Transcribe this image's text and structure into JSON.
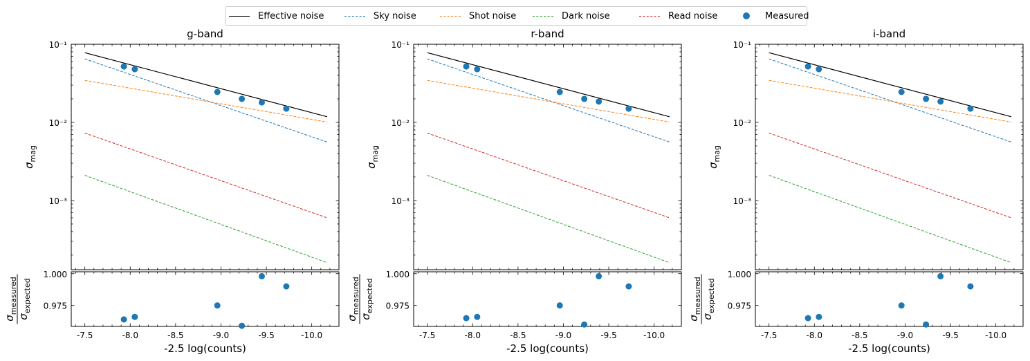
{
  "legend": {
    "items": [
      {
        "label": "Effective noise",
        "color": "#000000",
        "style": "solid"
      },
      {
        "label": "Sky noise",
        "color": "#1f77b4",
        "style": "dashed"
      },
      {
        "label": "Shot noise",
        "color": "#ff7f0e",
        "style": "dashed"
      },
      {
        "label": "Dark noise",
        "color": "#2ca02c",
        "style": "dashed"
      },
      {
        "label": "Read noise",
        "color": "#d62728",
        "style": "dashed"
      },
      {
        "label": "Measured",
        "color": "#1f77b4",
        "style": "marker"
      }
    ]
  },
  "chart_data": [
    {
      "type": "line",
      "title": "g-band",
      "xlabel": "-2.5 log(counts)",
      "ylabel": "σ_mag",
      "yscale": "log",
      "xlim": [
        -7.35,
        -10.3
      ],
      "ylim": [
        0.00013,
        0.1
      ],
      "xticks": [
        "-7.5",
        "-8.0",
        "-8.5",
        "-9.0",
        "-9.5",
        "-10.0"
      ],
      "yticks": [
        "10⁻¹",
        "10⁻²",
        "10⁻³"
      ],
      "series": [
        {
          "name": "Effective noise",
          "x": [
            -7.5,
            -10.17
          ],
          "y": [
            0.078,
            0.0118
          ],
          "color": "#000000",
          "style": "solid"
        },
        {
          "name": "Sky noise",
          "x": [
            -7.5,
            -10.17
          ],
          "y": [
            0.065,
            0.0056
          ],
          "color": "#1f77b4",
          "style": "dashed"
        },
        {
          "name": "Shot noise",
          "x": [
            -7.5,
            -10.17
          ],
          "y": [
            0.0345,
            0.0101
          ],
          "color": "#ff7f0e",
          "style": "dashed"
        },
        {
          "name": "Dark noise",
          "x": [
            -7.5,
            -10.17
          ],
          "y": [
            0.0021,
            0.00016
          ],
          "color": "#2ca02c",
          "style": "dashed"
        },
        {
          "name": "Read noise",
          "x": [
            -7.5,
            -10.17
          ],
          "y": [
            0.0073,
            0.0006
          ],
          "color": "#d62728",
          "style": "dashed"
        }
      ],
      "measured": {
        "name": "Measured",
        "x": [
          -7.93,
          -8.05,
          -8.96,
          -9.23,
          -9.45,
          -9.72
        ],
        "y": [
          0.052,
          0.048,
          0.0245,
          0.02,
          0.018,
          0.015
        ],
        "color": "#1f77b4"
      },
      "ratio": {
        "ylabel_num": "σ_measured",
        "ylabel_den": "σ_expected",
        "ylim": [
          0.9585,
          1.0015
        ],
        "yticks": [
          "1.000",
          "0.975"
        ],
        "x": [
          -7.93,
          -8.05,
          -8.96,
          -9.23,
          -9.45,
          -9.72
        ],
        "y": [
          0.964,
          0.966,
          0.975,
          0.959,
          0.998,
          0.99
        ]
      }
    },
    {
      "type": "line",
      "title": "r-band",
      "xlabel": "-2.5 log(counts)",
      "ylabel": "σ_mag",
      "yscale": "log",
      "xlim": [
        -7.35,
        -10.3
      ],
      "ylim": [
        0.00013,
        0.1
      ],
      "xticks": [
        "-7.5",
        "-8.0",
        "-8.5",
        "-9.0",
        "-9.5",
        "-10.0"
      ],
      "yticks": [
        "10⁻¹",
        "10⁻²",
        "10⁻³"
      ],
      "series": [
        {
          "name": "Effective noise",
          "x": [
            -7.5,
            -10.17
          ],
          "y": [
            0.078,
            0.0118
          ],
          "color": "#000000",
          "style": "solid"
        },
        {
          "name": "Sky noise",
          "x": [
            -7.5,
            -10.17
          ],
          "y": [
            0.065,
            0.0056
          ],
          "color": "#1f77b4",
          "style": "dashed"
        },
        {
          "name": "Shot noise",
          "x": [
            -7.5,
            -10.17
          ],
          "y": [
            0.0345,
            0.0101
          ],
          "color": "#ff7f0e",
          "style": "dashed"
        },
        {
          "name": "Dark noise",
          "x": [
            -7.5,
            -10.17
          ],
          "y": [
            0.0021,
            0.00016
          ],
          "color": "#2ca02c",
          "style": "dashed"
        },
        {
          "name": "Read noise",
          "x": [
            -7.5,
            -10.17
          ],
          "y": [
            0.0073,
            0.0006
          ],
          "color": "#d62728",
          "style": "dashed"
        }
      ],
      "measured": {
        "name": "Measured",
        "x": [
          -7.93,
          -8.05,
          -8.96,
          -9.23,
          -9.39,
          -9.72
        ],
        "y": [
          0.052,
          0.048,
          0.0245,
          0.02,
          0.0185,
          0.015
        ],
        "color": "#1f77b4"
      },
      "ratio": {
        "ylabel_num": "σ_measured",
        "ylabel_den": "σ_expected",
        "ylim": [
          0.9585,
          1.0015
        ],
        "yticks": [
          "1.000",
          "0.975"
        ],
        "x": [
          -7.93,
          -8.05,
          -8.96,
          -9.23,
          -9.39,
          -9.72
        ],
        "y": [
          0.965,
          0.966,
          0.975,
          0.96,
          0.998,
          0.99
        ]
      }
    },
    {
      "type": "line",
      "title": "i-band",
      "xlabel": "-2.5 log(counts)",
      "ylabel": "σ_mag",
      "yscale": "log",
      "xlim": [
        -7.35,
        -10.3
      ],
      "ylim": [
        0.00013,
        0.1
      ],
      "xticks": [
        "-7.5",
        "-8.0",
        "-8.5",
        "-9.0",
        "-9.5",
        "-10.0"
      ],
      "yticks": [
        "10⁻¹",
        "10⁻²",
        "10⁻³"
      ],
      "series": [
        {
          "name": "Effective noise",
          "x": [
            -7.5,
            -10.17
          ],
          "y": [
            0.078,
            0.0118
          ],
          "color": "#000000",
          "style": "solid"
        },
        {
          "name": "Sky noise",
          "x": [
            -7.5,
            -10.17
          ],
          "y": [
            0.065,
            0.0056
          ],
          "color": "#1f77b4",
          "style": "dashed"
        },
        {
          "name": "Shot noise",
          "x": [
            -7.5,
            -10.17
          ],
          "y": [
            0.0345,
            0.0101
          ],
          "color": "#ff7f0e",
          "style": "dashed"
        },
        {
          "name": "Dark noise",
          "x": [
            -7.5,
            -10.17
          ],
          "y": [
            0.0021,
            0.00016
          ],
          "color": "#2ca02c",
          "style": "dashed"
        },
        {
          "name": "Read noise",
          "x": [
            -7.5,
            -10.17
          ],
          "y": [
            0.0073,
            0.0006
          ],
          "color": "#d62728",
          "style": "dashed"
        }
      ],
      "measured": {
        "name": "Measured",
        "x": [
          -7.93,
          -8.05,
          -8.96,
          -9.23,
          -9.39,
          -9.72
        ],
        "y": [
          0.052,
          0.048,
          0.0245,
          0.02,
          0.0185,
          0.015
        ],
        "color": "#1f77b4"
      },
      "ratio": {
        "ylabel_num": "σ_measured",
        "ylabel_den": "σ_expected",
        "ylim": [
          0.9585,
          1.0015
        ],
        "yticks": [
          "1.000",
          "0.975"
        ],
        "x": [
          -7.93,
          -8.05,
          -8.96,
          -9.23,
          -9.39,
          -9.72
        ],
        "y": [
          0.965,
          0.966,
          0.975,
          0.96,
          0.998,
          0.99
        ]
      }
    }
  ]
}
